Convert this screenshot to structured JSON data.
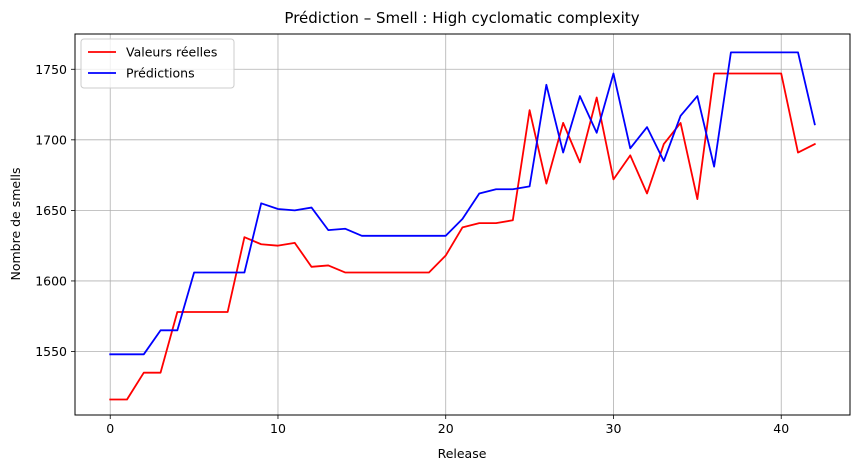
{
  "chart_data": {
    "type": "line",
    "title": "Prédiction – Smell : High cyclomatic complexity",
    "xlabel": "Release",
    "ylabel": "Nombre de smells",
    "xlim": [
      -2.1,
      44.1
    ],
    "ylim": [
      1505,
      1775
    ],
    "xticks": [
      0,
      10,
      20,
      30,
      40
    ],
    "yticks": [
      1550,
      1600,
      1650,
      1700,
      1750
    ],
    "grid": true,
    "legend_position": "top-left",
    "x": [
      0,
      1,
      2,
      3,
      4,
      5,
      6,
      7,
      8,
      9,
      10,
      11,
      12,
      13,
      14,
      15,
      16,
      17,
      18,
      19,
      20,
      21,
      22,
      23,
      24,
      25,
      26,
      27,
      28,
      29,
      30,
      31,
      32,
      33,
      34,
      35,
      36,
      37,
      38,
      39,
      40,
      41,
      42
    ],
    "series": [
      {
        "name": "Valeurs réelles",
        "color": "#ff0000",
        "values": [
          1516,
          1516,
          1535,
          1535,
          1578,
          1578,
          1578,
          1578,
          1631,
          1626,
          1625,
          1627,
          1610,
          1611,
          1606,
          1606,
          1606,
          1606,
          1606,
          1606,
          1618,
          1638,
          1641,
          1641,
          1643,
          1721,
          1669,
          1712,
          1684,
          1730,
          1672,
          1689,
          1662,
          1697,
          1712,
          1658,
          1747,
          1747,
          1747,
          1747,
          1747,
          1691,
          1697
        ]
      },
      {
        "name": "Prédictions",
        "color": "#0000ff",
        "values": [
          1548,
          1548,
          1548,
          1565,
          1565,
          1606,
          1606,
          1606,
          1606,
          1655,
          1651,
          1650,
          1652,
          1636,
          1637,
          1632,
          1632,
          1632,
          1632,
          1632,
          1632,
          1644,
          1662,
          1665,
          1665,
          1667,
          1739,
          1691,
          1731,
          1705,
          1747,
          1694,
          1709,
          1685,
          1717,
          1731,
          1681,
          1762,
          1762,
          1762,
          1762,
          1762,
          1711
        ]
      }
    ]
  }
}
